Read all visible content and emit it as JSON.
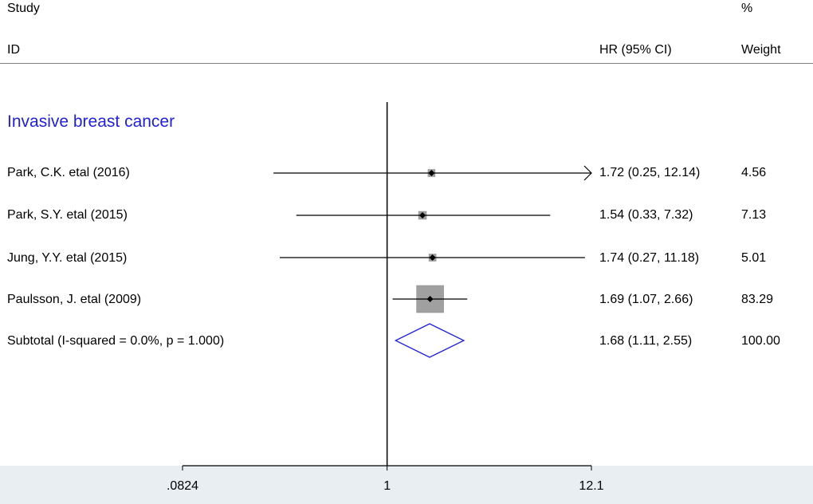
{
  "header": {
    "study_label": "Study",
    "id_label": "ID",
    "hr_label": "HR (95% CI)",
    "percent_label": "%",
    "weight_label": "Weight"
  },
  "chart_data": {
    "type": "forest",
    "scale": "log",
    "reference_line": 1,
    "xlim": [
      0.0824,
      12.1
    ],
    "xticks": [
      ".0824",
      "1",
      "12.1"
    ],
    "xtick_values": [
      0.0824,
      1,
      12.1
    ],
    "group": "Invasive breast cancer",
    "studies": [
      {
        "id": "Park, C.K. etal (2016)",
        "hr": 1.72,
        "lo": 0.25,
        "hi": 12.14,
        "ci_text": "1.72 (0.25, 12.14)",
        "weight": 4.56,
        "weight_text": "4.56",
        "arrow_right": true
      },
      {
        "id": "Park, S.Y. etal (2015)",
        "hr": 1.54,
        "lo": 0.33,
        "hi": 7.32,
        "ci_text": "1.54 (0.33, 7.32)",
        "weight": 7.13,
        "weight_text": "7.13",
        "arrow_right": false
      },
      {
        "id": "Jung, Y.Y. etal (2015)",
        "hr": 1.74,
        "lo": 0.27,
        "hi": 11.18,
        "ci_text": "1.74 (0.27, 11.18)",
        "weight": 5.01,
        "weight_text": "5.01",
        "arrow_right": false
      },
      {
        "id": "Paulsson, J. etal (2009)",
        "hr": 1.69,
        "lo": 1.07,
        "hi": 2.66,
        "ci_text": "1.69 (1.07, 2.66)",
        "weight": 83.29,
        "weight_text": "83.29",
        "arrow_right": false
      }
    ],
    "subtotal": {
      "label": "Subtotal  (I-squared = 0.0%, p = 1.000)",
      "hr": 1.68,
      "lo": 1.11,
      "hi": 2.55,
      "ci_text": "1.68 (1.11, 2.55)",
      "weight_text": "100.00"
    },
    "colors": {
      "line": "#000000",
      "box": "#a0a0a0",
      "diamond": "#1f1fe0",
      "group": "#1f1fe0",
      "axis_band": "#e8eef1"
    }
  }
}
